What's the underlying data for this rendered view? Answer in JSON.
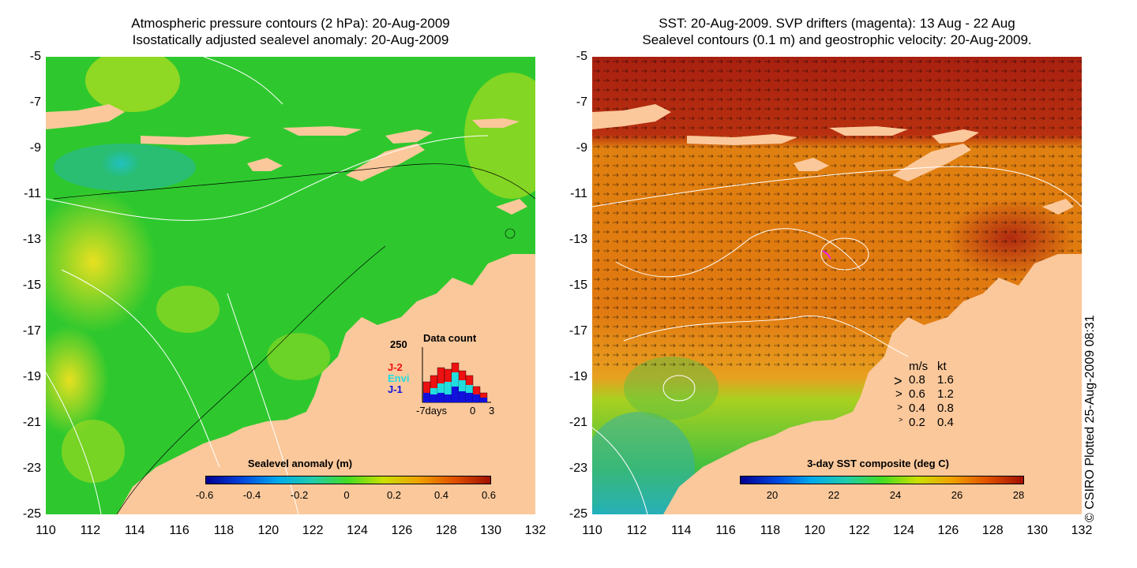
{
  "left_panel": {
    "title_line1": "Atmospheric pressure contours (2 hPa): 20-Aug-2009",
    "title_line2": "Isostatically adjusted sealevel anomaly: 20-Aug-2009",
    "colorbar": {
      "title": "Sealevel anomaly (m)",
      "ticks": [
        "-0.6",
        "-0.4",
        "-0.2",
        "0",
        "0.2",
        "0.4",
        "0.6"
      ]
    },
    "data_count": {
      "title": "Data count",
      "ymax": "250",
      "legend": [
        {
          "label": "J-2",
          "color": "#ee1111"
        },
        {
          "label": "Envi",
          "color": "#22dddd"
        },
        {
          "label": "J-1",
          "color": "#1111dd"
        }
      ],
      "xlabel_left": "-7days",
      "xlabel_mid": "0",
      "xlabel_right": "3"
    }
  },
  "right_panel": {
    "title_line1": "SST: 20-Aug-2009. SVP drifters (magenta): 13 Aug - 22 Aug",
    "title_line2": "Sealevel contours (0.1 m) and geostrophic velocity: 20-Aug-2009.",
    "colorbar": {
      "title": "3-day SST composite (deg C)",
      "ticks": [
        "20",
        "22",
        "24",
        "26",
        "28"
      ]
    },
    "speed_legend": {
      "header_ms": "m/s",
      "header_kt": "kt",
      "rows": [
        {
          "ms": "0.8",
          "kt": "1.6"
        },
        {
          "ms": "0.6",
          "kt": "1.2"
        },
        {
          "ms": "0.4",
          "kt": "0.8"
        },
        {
          "ms": "0.2",
          "kt": "0.4"
        }
      ]
    }
  },
  "axes": {
    "y_ticks": [
      "-5",
      "-7",
      "-9",
      "-11",
      "-13",
      "-15",
      "-17",
      "-19",
      "-21",
      "-23",
      "-25"
    ],
    "x_ticks": [
      "110",
      "112",
      "114",
      "116",
      "118",
      "120",
      "122",
      "124",
      "126",
      "128",
      "130",
      "132"
    ]
  },
  "copyright": "© CSIRO Plotted 25-Aug-2009 08:31",
  "colors": {
    "land": "#fbc89b",
    "sla_green": "#22c422",
    "sst_orange": "#e07a10",
    "sst_darkred": "#a01e10",
    "drifter": "#ee22ee"
  }
}
